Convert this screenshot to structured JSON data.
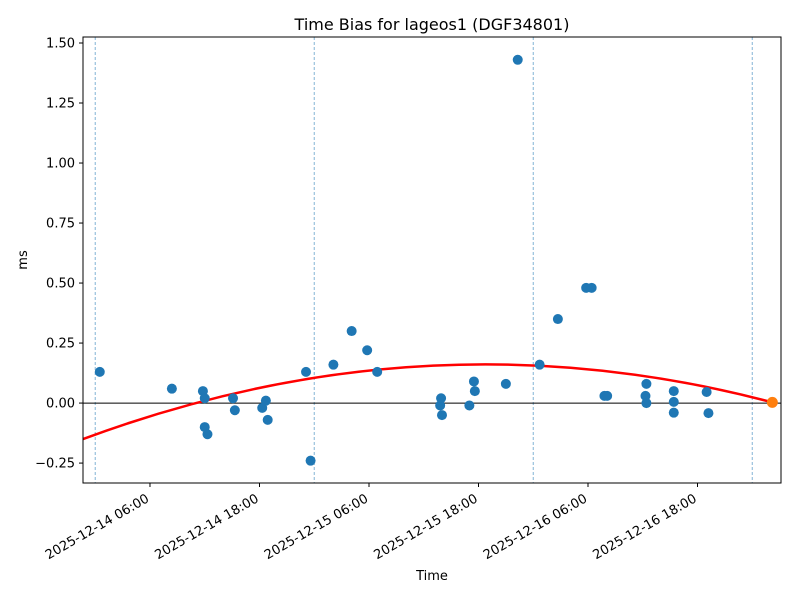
{
  "chart_data": {
    "type": "scatter",
    "title": "Time Bias for lageos1 (DGF34801)",
    "xlabel": "Time",
    "ylabel": "ms",
    "x_unit_hours_since": "2025-12-14 00:00",
    "x_range": [
      -1.34,
      75.15
    ],
    "y_range": [
      -0.333,
      1.525
    ],
    "x_ticks": [
      {
        "t": 6,
        "label": "2025-12-14 06:00"
      },
      {
        "t": 18,
        "label": "2025-12-14 18:00"
      },
      {
        "t": 30,
        "label": "2025-12-15 06:00"
      },
      {
        "t": 42,
        "label": "2025-12-15 18:00"
      },
      {
        "t": 54,
        "label": "2025-12-16 06:00"
      },
      {
        "t": 66,
        "label": "2025-12-16 18:00"
      }
    ],
    "y_ticks": [
      {
        "v": 1.5,
        "label": "1.50"
      },
      {
        "v": 1.25,
        "label": "1.25"
      },
      {
        "v": 1.0,
        "label": "1.00"
      },
      {
        "v": 0.75,
        "label": "0.75"
      },
      {
        "v": 0.5,
        "label": "0.50"
      },
      {
        "v": 0.25,
        "label": "0.25"
      },
      {
        "v": 0.0,
        "label": "0.00"
      },
      {
        "v": -0.25,
        "label": "−0.25"
      }
    ],
    "series": [
      {
        "name": "time-bias-observations",
        "color": "#1f77b4",
        "marker_radius": 5,
        "points": [
          [
            0.5,
            0.13
          ],
          [
            8.4,
            0.06
          ],
          [
            11.8,
            0.05
          ],
          [
            12.0,
            0.02
          ],
          [
            12.0,
            -0.1
          ],
          [
            12.3,
            -0.13
          ],
          [
            15.1,
            0.02
          ],
          [
            15.3,
            -0.03
          ],
          [
            18.3,
            -0.02
          ],
          [
            18.7,
            0.01
          ],
          [
            18.9,
            -0.07
          ],
          [
            23.1,
            0.13
          ],
          [
            23.6,
            -0.24
          ],
          [
            26.1,
            0.16
          ],
          [
            28.1,
            0.3
          ],
          [
            29.8,
            0.22
          ],
          [
            30.9,
            0.13
          ],
          [
            37.8,
            -0.01
          ],
          [
            37.9,
            0.02
          ],
          [
            38.0,
            -0.05
          ],
          [
            41.0,
            -0.01
          ],
          [
            41.5,
            0.09
          ],
          [
            41.6,
            0.05
          ],
          [
            45.0,
            0.08
          ],
          [
            46.3,
            1.43
          ],
          [
            48.7,
            0.16
          ],
          [
            50.7,
            0.35
          ],
          [
            53.8,
            0.48
          ],
          [
            54.4,
            0.48
          ],
          [
            55.8,
            0.03
          ],
          [
            56.1,
            0.03
          ],
          [
            60.3,
            0.03
          ],
          [
            60.4,
            0.08
          ],
          [
            60.4,
            0.0
          ],
          [
            63.4,
            0.05
          ],
          [
            63.4,
            0.005
          ],
          [
            63.4,
            -0.04
          ],
          [
            67.0,
            0.046
          ],
          [
            67.2,
            -0.042
          ]
        ]
      },
      {
        "name": "latest-observation",
        "color": "#ff7f0e",
        "marker_radius": 5.5,
        "points": [
          [
            74.2,
            0.003
          ]
        ]
      }
    ],
    "fit_curve": {
      "name": "polynomial-fit",
      "color": "#ff0000",
      "width": 2.5,
      "bezier": {
        "start": [
          -1.34,
          -0.15
        ],
        "control": [
          36.4,
          0.383
        ],
        "end": [
          74.2,
          0.003
        ]
      }
    },
    "zero_line": {
      "value": 0,
      "color": "#000000",
      "width": 1
    },
    "day_lines": {
      "t_values": [
        0,
        24,
        48,
        72
      ],
      "color": "#1f77b4",
      "opacity": 0.55,
      "dash": "3 2",
      "width": 1
    },
    "grid": false,
    "legend_position": "none"
  },
  "layout_colors": {
    "background": "#ffffff",
    "spine": "#000000"
  }
}
